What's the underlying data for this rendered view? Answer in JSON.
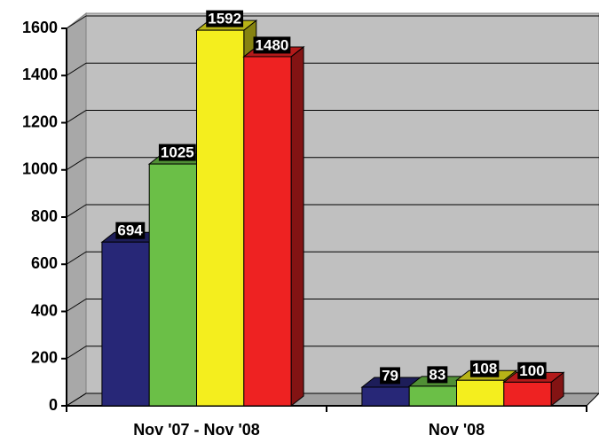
{
  "chart_data": {
    "type": "bar3d",
    "categories": [
      "Nov '07 - Nov '08",
      "Nov '08"
    ],
    "series": [
      {
        "color": "#272777",
        "values": [
          694,
          79
        ]
      },
      {
        "color": "#6bbf47",
        "values": [
          1025,
          83
        ]
      },
      {
        "color": "#f4ee1e",
        "values": [
          1592,
          108
        ]
      },
      {
        "color": "#ee2222",
        "values": [
          1480,
          100
        ]
      }
    ],
    "ylim": [
      0,
      1600
    ],
    "yticks": [
      0,
      200,
      400,
      600,
      800,
      1000,
      1200,
      1400,
      1600
    ],
    "grid": true
  }
}
